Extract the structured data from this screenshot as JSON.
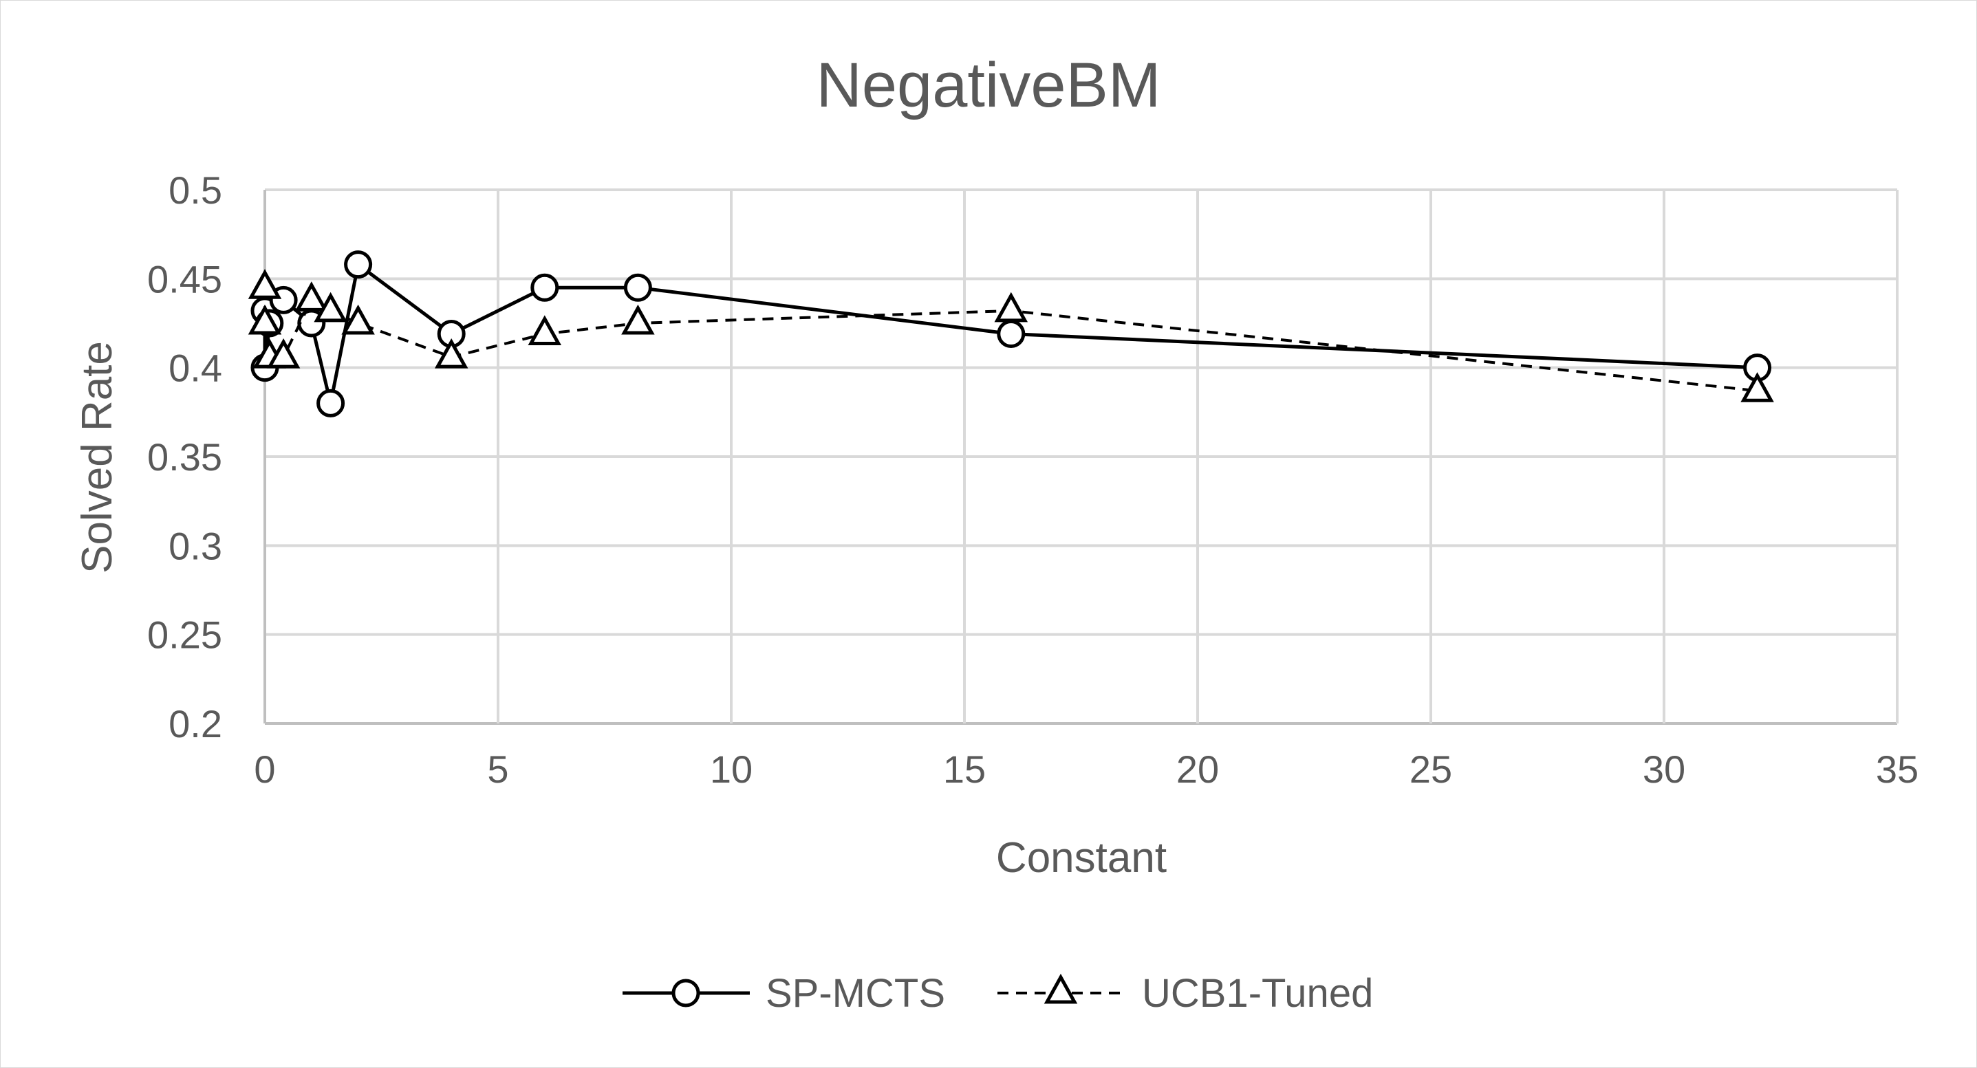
{
  "chart_data": {
    "type": "scatter",
    "title": "NegativeBM",
    "xlabel": "Constant",
    "ylabel": "Solved Rate",
    "xlim": [
      0,
      35
    ],
    "ylim": [
      0.2,
      0.5
    ],
    "x_ticks": [
      "0",
      "5",
      "10",
      "15",
      "20",
      "25",
      "30",
      "35"
    ],
    "x_tick_values": [
      0,
      5,
      10,
      15,
      20,
      25,
      30,
      35
    ],
    "y_ticks": [
      "0.2",
      "0.25",
      "0.3",
      "0.35",
      "0.4",
      "0.45",
      "0.5"
    ],
    "y_tick_values": [
      0.2,
      0.25,
      0.3,
      0.35,
      0.4,
      0.45,
      0.5
    ],
    "grid": true,
    "legend_position": "bottom",
    "series": [
      {
        "name": "SP-MCTS",
        "line_style": "solid",
        "marker": "circle",
        "color": "#000000",
        "x": [
          0.0,
          0.0,
          0.1,
          0.4,
          1.0,
          1.41,
          2.0,
          4.0,
          6.0,
          8.0,
          16.0,
          32.0
        ],
        "y": [
          0.432,
          0.4,
          0.425,
          0.438,
          0.425,
          0.38,
          0.458,
          0.419,
          0.445,
          0.445,
          0.419,
          0.4
        ]
      },
      {
        "name": "UCB1-Tuned",
        "line_style": "dashed",
        "marker": "triangle",
        "color": "#000000",
        "x": [
          0.0,
          0.0,
          0.1,
          0.4,
          1.0,
          1.41,
          2.0,
          4.0,
          6.0,
          8.0,
          16.0,
          32.0
        ],
        "y": [
          0.445,
          0.425,
          0.406,
          0.406,
          0.438,
          0.432,
          0.425,
          0.406,
          0.419,
          0.425,
          0.432,
          0.387
        ]
      }
    ]
  }
}
